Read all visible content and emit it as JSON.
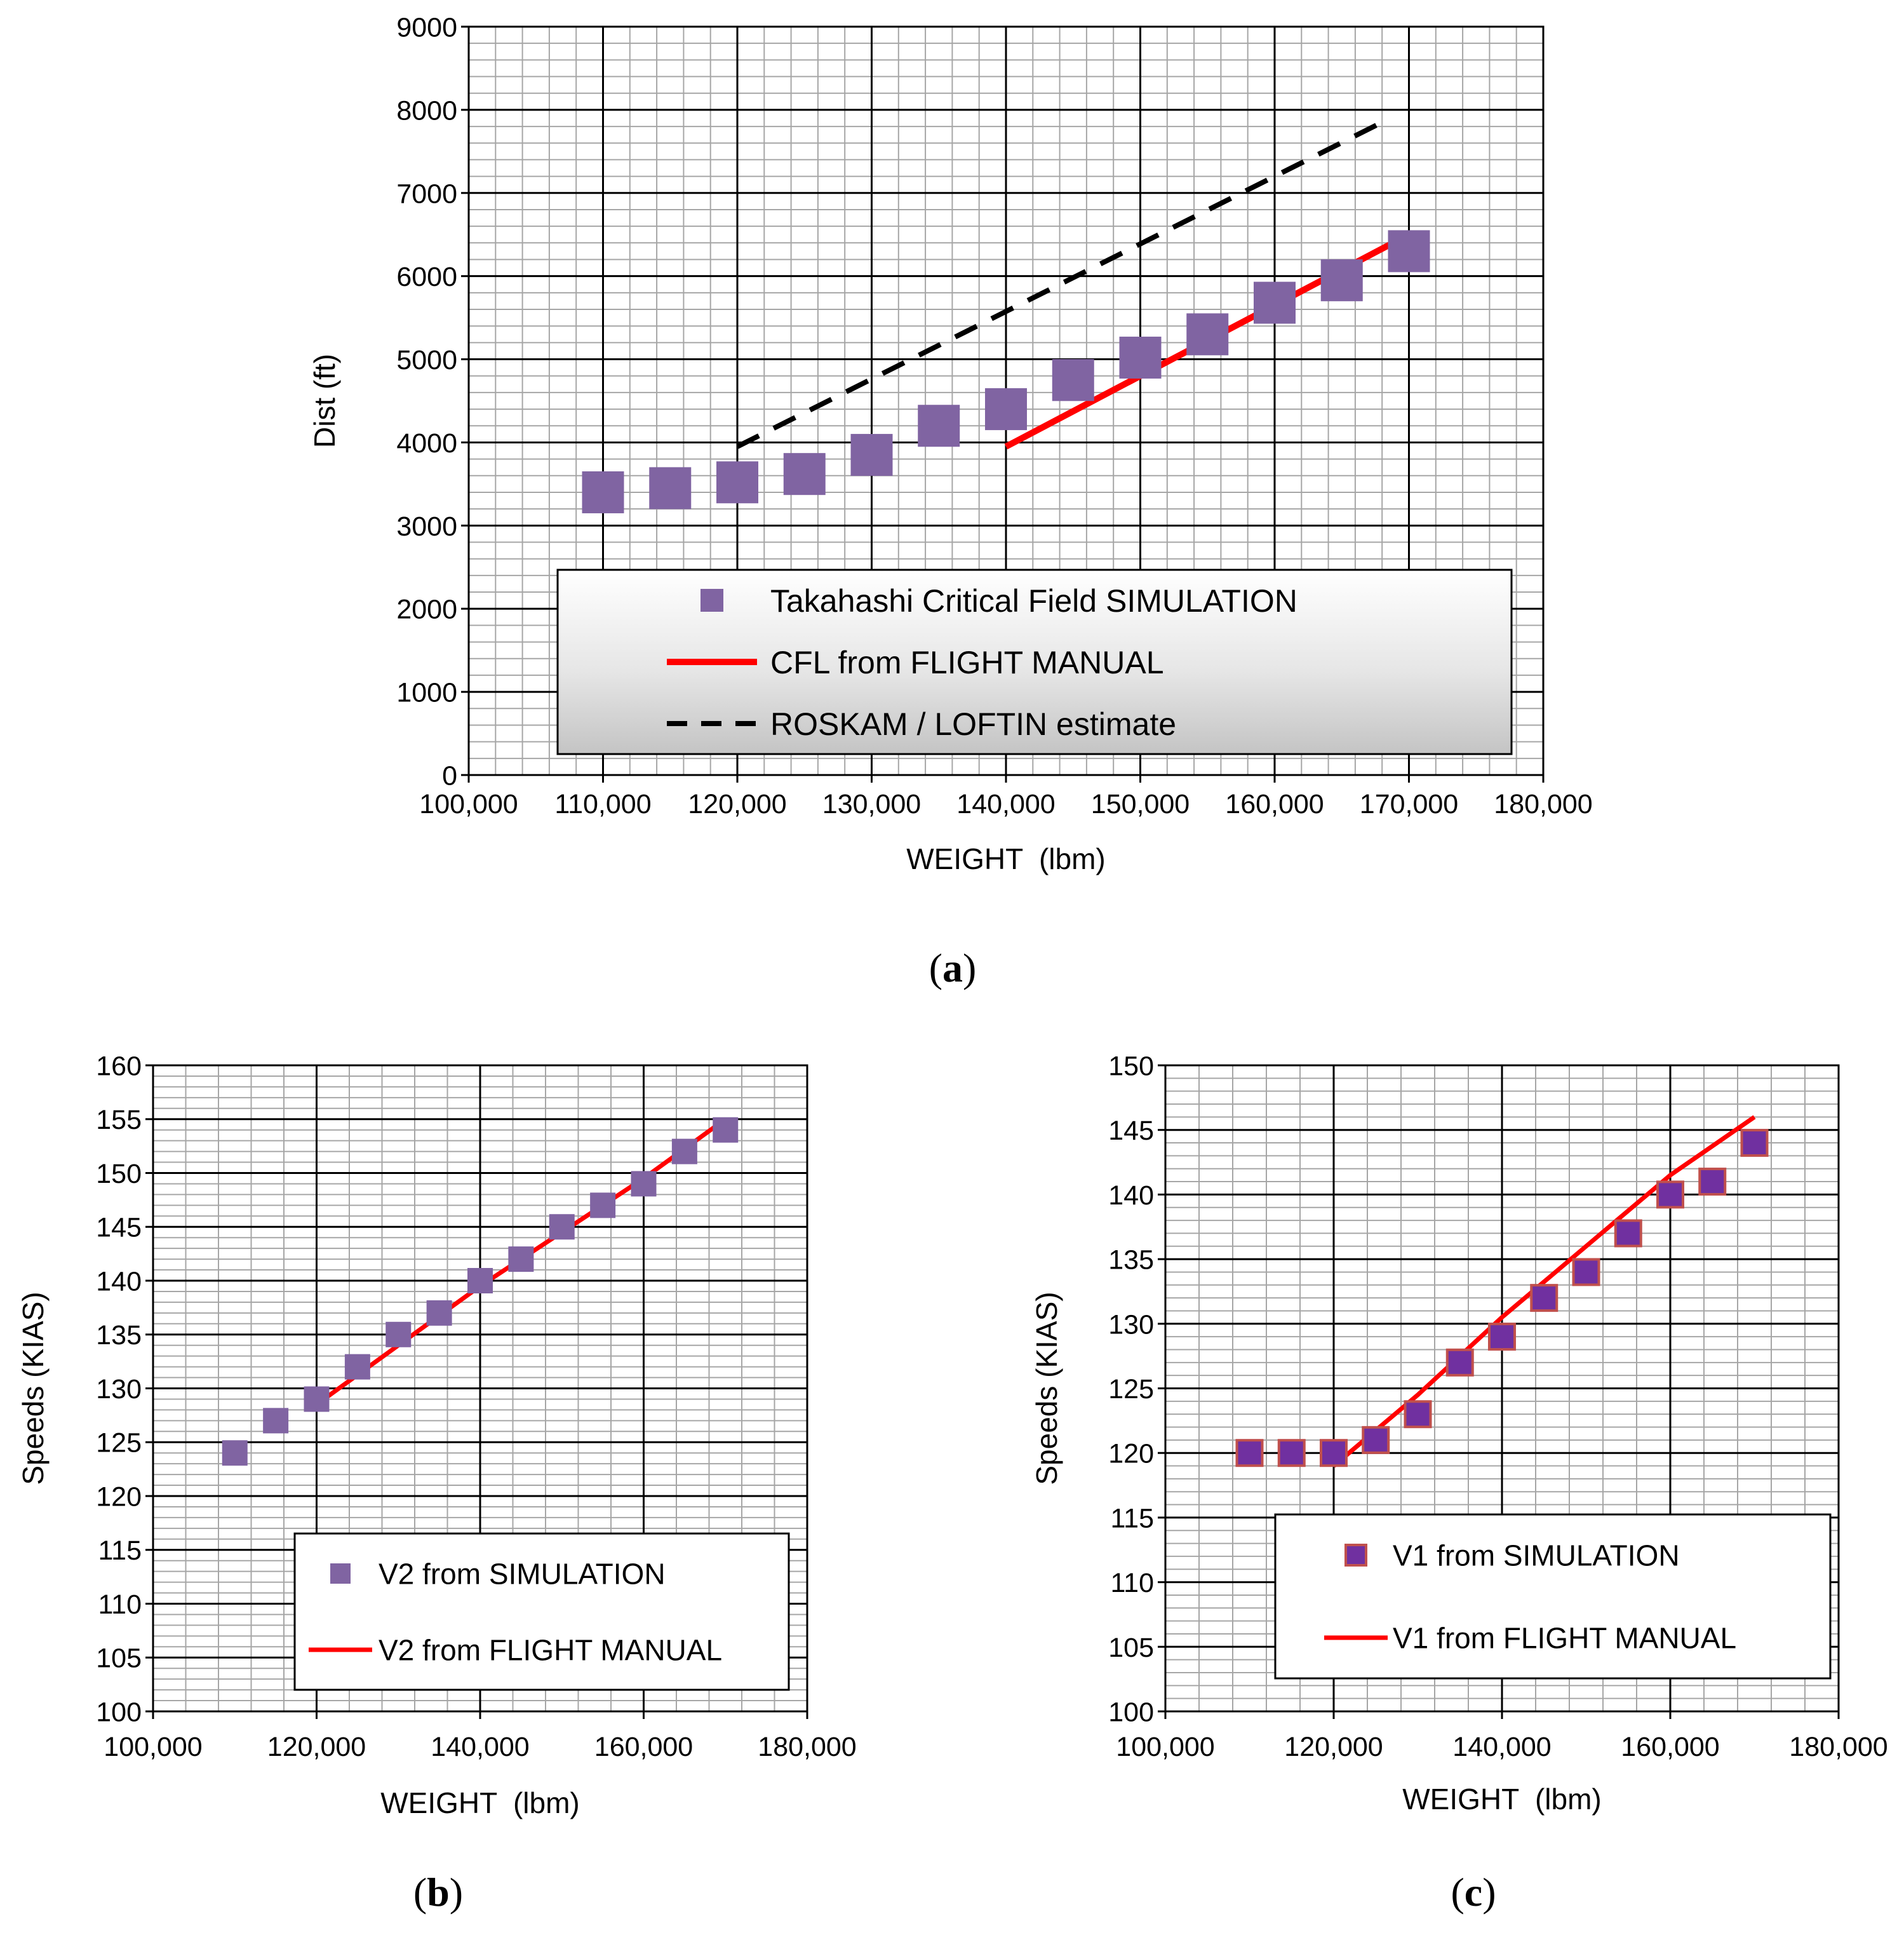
{
  "panels": [
    {
      "caption_letter": "a"
    },
    {
      "caption_letter": "b"
    },
    {
      "caption_letter": "c"
    }
  ],
  "chart_data": [
    {
      "type": "scatter",
      "title": "",
      "xlabel": "WEIGHT  (lbm)",
      "ylabel": "Dist (ft)",
      "xlim": [
        100000,
        180000
      ],
      "ylim": [
        0,
        9000
      ],
      "x_ticks": [
        100000,
        110000,
        120000,
        130000,
        140000,
        150000,
        160000,
        170000,
        180000
      ],
      "x_tick_labels": [
        "100,000",
        "110,000",
        "120,000",
        "130,000",
        "140,000",
        "150,000",
        "160,000",
        "170,000",
        "180,000"
      ],
      "y_ticks": [
        0,
        1000,
        2000,
        3000,
        4000,
        5000,
        6000,
        7000,
        8000,
        9000
      ],
      "y_tick_labels": [
        "0",
        "1000",
        "2000",
        "3000",
        "4000",
        "5000",
        "6000",
        "7000",
        "8000",
        "9000"
      ],
      "grid": true,
      "legend_position": "bottom-right",
      "series": [
        {
          "name": "Takahashi Critical Field SIMULATION",
          "kind": "marker",
          "color": "#8064a2",
          "x": [
            110000,
            115000,
            120000,
            125000,
            130000,
            135000,
            140000,
            145000,
            150000,
            155000,
            160000,
            165000,
            170000
          ],
          "y": [
            3400,
            3450,
            3520,
            3620,
            3850,
            4200,
            4400,
            4750,
            5020,
            5300,
            5680,
            5950,
            6300
          ]
        },
        {
          "name": "CFL from FLIGHT MANUAL",
          "kind": "line",
          "dash": "solid",
          "color": "#ff0000",
          "x": [
            140000,
            170000
          ],
          "y": [
            3950,
            6500
          ]
        },
        {
          "name": "ROSKAM / LOFTIN estimate",
          "kind": "line",
          "dash": "dashed",
          "color": "#000000",
          "x": [
            120000,
            168000
          ],
          "y": [
            3950,
            7850
          ]
        }
      ]
    },
    {
      "type": "scatter",
      "title": "",
      "xlabel": "WEIGHT  (lbm)",
      "ylabel": "Speeds (KIAS)",
      "xlim": [
        100000,
        180000
      ],
      "ylim": [
        100,
        160
      ],
      "x_ticks": [
        100000,
        120000,
        140000,
        160000,
        180000
      ],
      "x_tick_labels": [
        "100,000",
        "120,000",
        "140,000",
        "160,000",
        "180,000"
      ],
      "y_ticks": [
        100,
        105,
        110,
        115,
        120,
        125,
        130,
        135,
        140,
        145,
        150,
        155,
        160
      ],
      "y_tick_labels": [
        "100",
        "105",
        "110",
        "115",
        "120",
        "125",
        "130",
        "135",
        "140",
        "145",
        "150",
        "155",
        "160"
      ],
      "grid": true,
      "legend_position": "bottom-right",
      "series": [
        {
          "name": "V2 from SIMULATION",
          "kind": "marker",
          "color": "#8064a2",
          "x": [
            110000,
            115000,
            120000,
            125000,
            130000,
            135000,
            140000,
            145000,
            150000,
            155000,
            160000,
            165000,
            170000
          ],
          "y": [
            124,
            127,
            129,
            132,
            135,
            137,
            140,
            142,
            145,
            147,
            149,
            152,
            154
          ]
        },
        {
          "name": "V2 from FLIGHT MANUAL",
          "kind": "line",
          "dash": "solid",
          "color": "#ff0000",
          "x": [
            120000,
            130000,
            140000,
            150000,
            160000,
            170000
          ],
          "y": [
            128.5,
            134,
            139.5,
            144.5,
            149.5,
            155
          ]
        }
      ]
    },
    {
      "type": "scatter",
      "title": "",
      "xlabel": "WEIGHT  (lbm)",
      "ylabel": "Speeds (KIAS)",
      "xlim": [
        100000,
        180000
      ],
      "ylim": [
        100,
        150
      ],
      "x_ticks": [
        100000,
        120000,
        140000,
        160000,
        180000
      ],
      "x_tick_labels": [
        "100,000",
        "120,000",
        "140,000",
        "160,000",
        "180,000"
      ],
      "y_ticks": [
        100,
        105,
        110,
        115,
        120,
        125,
        130,
        135,
        140,
        145,
        150
      ],
      "y_tick_labels": [
        "100",
        "105",
        "110",
        "115",
        "120",
        "125",
        "130",
        "135",
        "140",
        "145",
        "150"
      ],
      "grid": true,
      "legend_position": "bottom-right",
      "series": [
        {
          "name": "V1 from SIMULATION",
          "kind": "marker",
          "color": "#7030a0",
          "stroke": "#c0504d",
          "x": [
            110000,
            115000,
            120000,
            125000,
            130000,
            135000,
            140000,
            145000,
            150000,
            155000,
            160000,
            165000,
            170000
          ],
          "y": [
            120,
            120,
            120,
            121,
            123,
            127,
            129,
            132,
            134,
            137,
            140,
            141,
            144
          ]
        },
        {
          "name": "V1 from FLIGHT MANUAL",
          "kind": "line",
          "dash": "solid",
          "color": "#ff0000",
          "x": [
            120000,
            130000,
            140000,
            150000,
            160000,
            170000
          ],
          "y": [
            119,
            124.5,
            130.5,
            136,
            141.5,
            146
          ]
        }
      ]
    }
  ]
}
